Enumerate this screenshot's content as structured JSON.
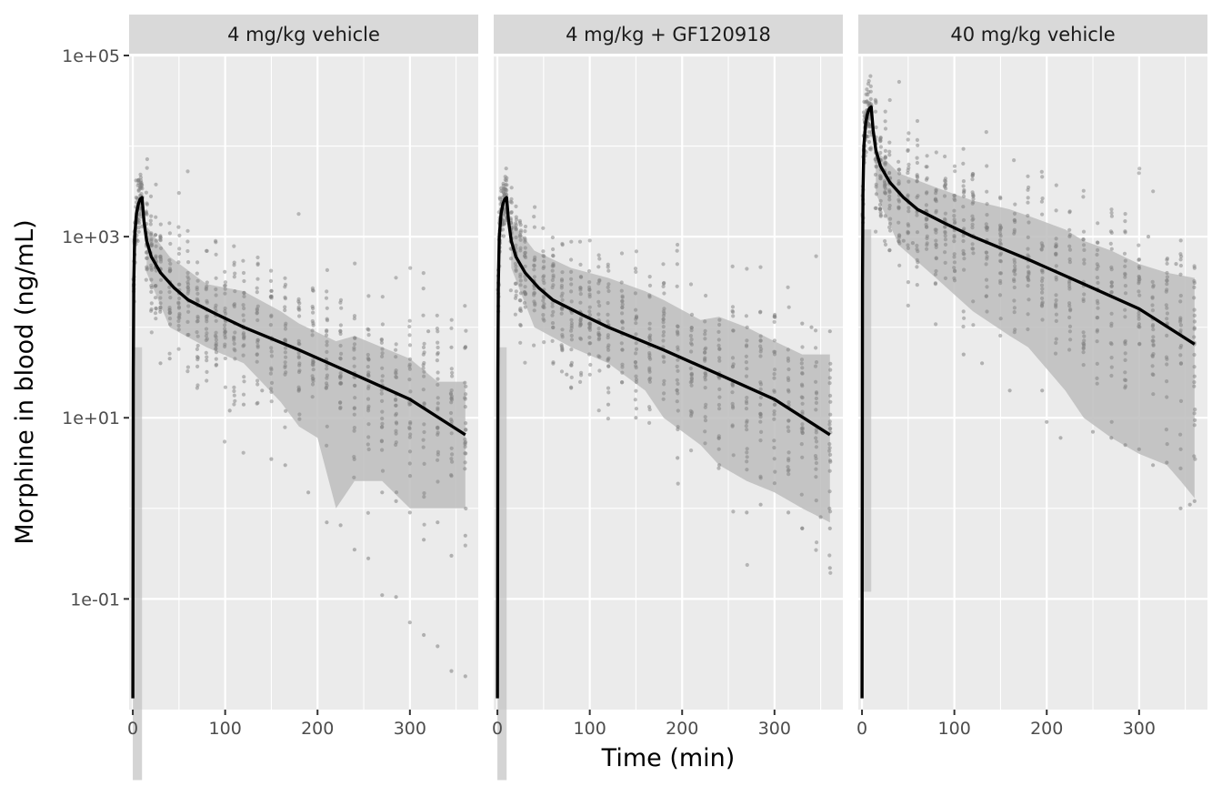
{
  "chart_data": {
    "type": "scatter",
    "xlabel": "Time (min)",
    "ylabel": "Morphine in blood (ng/mL)",
    "y_scale": "log10",
    "xlim": [
      -4,
      374
    ],
    "ylim": [
      0.006,
      100000
    ],
    "x_ticks": [
      0,
      100,
      200,
      300
    ],
    "y_ticks": [
      {
        "value": 100000,
        "label": "1e+05"
      },
      {
        "value": 1000,
        "label": "1e+03"
      },
      {
        "value": 10,
        "label": "1e+01"
      },
      {
        "value": 0.1,
        "label": "1e-01"
      }
    ],
    "grid": true,
    "legend": "none",
    "colors": {
      "panel_bg": "#ebebeb",
      "strip_bg": "#d9d9d9",
      "grid": "#ffffff",
      "points": "#7f7f7f",
      "band": "#bdbdbd",
      "line": "#000000"
    },
    "obs_times": [
      1,
      2,
      3,
      4,
      5,
      6,
      7,
      8,
      9,
      10,
      15,
      20,
      25,
      30,
      40,
      50,
      60,
      70,
      80,
      90,
      100,
      110,
      120,
      135,
      150,
      165,
      180,
      195,
      210,
      225,
      240,
      255,
      270,
      285,
      300,
      315,
      330,
      345,
      360
    ],
    "panels": [
      {
        "title": "4 mg/kg vehicle",
        "dose_scale": 1,
        "median_curve": [
          [
            0,
            0.008
          ],
          [
            0.5,
            30
          ],
          [
            1,
            300
          ],
          [
            2,
            1000
          ],
          [
            4,
            1800
          ],
          [
            6,
            2300
          ],
          [
            8,
            2600
          ],
          [
            10,
            2700
          ],
          [
            12,
            1500
          ],
          [
            15,
            900
          ],
          [
            20,
            600
          ],
          [
            30,
            400
          ],
          [
            45,
            270
          ],
          [
            60,
            200
          ],
          [
            90,
            140
          ],
          [
            120,
            100
          ],
          [
            180,
            56
          ],
          [
            240,
            30
          ],
          [
            300,
            16
          ],
          [
            360,
            6.5
          ]
        ],
        "band_upper": [
          [
            15,
            1300
          ],
          [
            40,
            600
          ],
          [
            80,
            300
          ],
          [
            120,
            250
          ],
          [
            160,
            150
          ],
          [
            180,
            110
          ],
          [
            220,
            70
          ],
          [
            240,
            80
          ],
          [
            270,
            60
          ],
          [
            300,
            45
          ],
          [
            330,
            25
          ],
          [
            360,
            25
          ]
        ],
        "band_lower": [
          [
            15,
            400
          ],
          [
            40,
            100
          ],
          [
            80,
            60
          ],
          [
            120,
            40
          ],
          [
            160,
            15
          ],
          [
            180,
            8
          ],
          [
            200,
            6
          ],
          [
            220,
            1
          ],
          [
            240,
            2
          ],
          [
            270,
            2
          ],
          [
            300,
            1
          ],
          [
            330,
            1
          ],
          [
            360,
            1
          ]
        ],
        "outliers": [
          [
            150,
            3.5
          ],
          [
            165,
            3
          ],
          [
            190,
            1.5
          ],
          [
            210,
            0.7
          ],
          [
            225,
            0.65
          ],
          [
            240,
            0.35
          ],
          [
            255,
            0.28
          ],
          [
            270,
            0.11
          ],
          [
            285,
            0.105
          ],
          [
            300,
            0.055
          ],
          [
            315,
            0.04
          ],
          [
            330,
            0.03
          ],
          [
            345,
            0.016
          ],
          [
            360,
            0.014
          ],
          [
            360,
            0.5
          ],
          [
            345,
            0.3
          ],
          [
            315,
            0.45
          ],
          [
            330,
            0.7
          ],
          [
            300,
            0.9
          ],
          [
            285,
            1.2
          ],
          [
            270,
            1.5
          ],
          [
            105,
            12
          ],
          [
            120,
            14
          ],
          [
            140,
            20
          ],
          [
            320,
            90
          ],
          [
            345,
            60
          ],
          [
            360,
            60
          ],
          [
            30,
            40
          ],
          [
            40,
            45
          ]
        ]
      },
      {
        "title": "4 mg/kg + GF120918",
        "dose_scale": 1,
        "median_curve": [
          [
            0,
            0.008
          ],
          [
            0.5,
            30
          ],
          [
            1,
            300
          ],
          [
            2,
            1000
          ],
          [
            4,
            1800
          ],
          [
            6,
            2300
          ],
          [
            8,
            2600
          ],
          [
            10,
            2700
          ],
          [
            12,
            1500
          ],
          [
            15,
            900
          ],
          [
            20,
            600
          ],
          [
            30,
            400
          ],
          [
            45,
            270
          ],
          [
            60,
            200
          ],
          [
            90,
            140
          ],
          [
            120,
            100
          ],
          [
            180,
            56
          ],
          [
            240,
            30
          ],
          [
            300,
            16
          ],
          [
            360,
            6.5
          ]
        ],
        "band_upper": [
          [
            15,
            1500
          ],
          [
            40,
            700
          ],
          [
            80,
            450
          ],
          [
            120,
            350
          ],
          [
            160,
            250
          ],
          [
            180,
            200
          ],
          [
            220,
            120
          ],
          [
            240,
            130
          ],
          [
            270,
            100
          ],
          [
            300,
            70
          ],
          [
            330,
            50
          ],
          [
            360,
            50
          ]
        ],
        "band_lower": [
          [
            15,
            450
          ],
          [
            40,
            100
          ],
          [
            80,
            60
          ],
          [
            120,
            40
          ],
          [
            160,
            20
          ],
          [
            180,
            10
          ],
          [
            220,
            5
          ],
          [
            240,
            3
          ],
          [
            270,
            2
          ],
          [
            300,
            1.5
          ],
          [
            330,
            1
          ],
          [
            360,
            0.7
          ]
        ],
        "outliers": [
          [
            360,
            0.22
          ],
          [
            360,
            0.6
          ],
          [
            350,
            0.8
          ],
          [
            330,
            0.6
          ],
          [
            315,
            0.9
          ],
          [
            285,
            1.1
          ],
          [
            270,
            0.9
          ],
          [
            195,
            3.6
          ],
          [
            150,
            10
          ],
          [
            120,
            14
          ],
          [
            75,
            30
          ],
          [
            340,
            100
          ],
          [
            360,
            90
          ],
          [
            330,
            110
          ],
          [
            300,
            130
          ]
        ]
      },
      {
        "title": "40 mg/kg vehicle",
        "dose_scale": 10,
        "median_curve": [
          [
            0,
            0.008
          ],
          [
            0.5,
            300
          ],
          [
            1,
            3000
          ],
          [
            2,
            10000
          ],
          [
            4,
            18000
          ],
          [
            6,
            23000
          ],
          [
            8,
            26000
          ],
          [
            10,
            27000
          ],
          [
            12,
            15000
          ],
          [
            15,
            9000
          ],
          [
            20,
            6000
          ],
          [
            30,
            4000
          ],
          [
            45,
            2700
          ],
          [
            60,
            2000
          ],
          [
            90,
            1400
          ],
          [
            120,
            1000
          ],
          [
            180,
            560
          ],
          [
            240,
            300
          ],
          [
            300,
            160
          ],
          [
            360,
            65
          ]
        ],
        "band_upper": [
          [
            15,
            9000
          ],
          [
            40,
            5000
          ],
          [
            80,
            3500
          ],
          [
            120,
            2500
          ],
          [
            160,
            2000
          ],
          [
            180,
            1700
          ],
          [
            220,
            1200
          ],
          [
            240,
            900
          ],
          [
            270,
            700
          ],
          [
            300,
            500
          ],
          [
            330,
            400
          ],
          [
            360,
            350
          ]
        ],
        "band_lower": [
          [
            15,
            3000
          ],
          [
            40,
            800
          ],
          [
            80,
            350
          ],
          [
            120,
            150
          ],
          [
            160,
            80
          ],
          [
            180,
            60
          ],
          [
            220,
            20
          ],
          [
            240,
            10
          ],
          [
            270,
            6
          ],
          [
            300,
            4
          ],
          [
            330,
            3
          ],
          [
            345,
            2
          ],
          [
            360,
            1.3
          ]
        ],
        "outliers": [
          [
            45,
            900
          ],
          [
            55,
            850
          ],
          [
            110,
            50
          ],
          [
            130,
            40
          ],
          [
            160,
            20
          ],
          [
            195,
            20
          ],
          [
            200,
            9
          ],
          [
            215,
            6
          ],
          [
            250,
            7
          ],
          [
            270,
            6
          ],
          [
            285,
            5
          ],
          [
            300,
            4.5
          ],
          [
            315,
            3
          ],
          [
            330,
            3.2
          ],
          [
            345,
            1
          ],
          [
            355,
            1.1
          ],
          [
            360,
            1.2
          ],
          [
            310,
            1000
          ],
          [
            340,
            500
          ],
          [
            360,
            450
          ]
        ]
      }
    ]
  }
}
